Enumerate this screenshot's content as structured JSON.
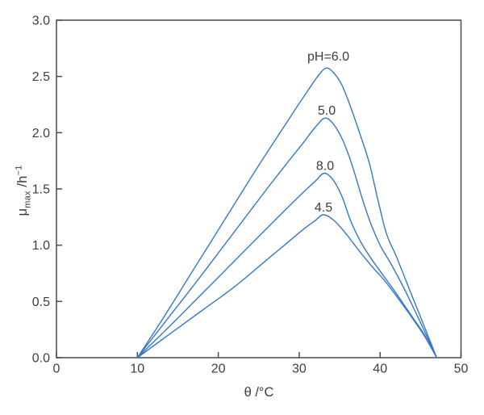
{
  "figure": {
    "background": "#ffffff",
    "curve_color": "#3578c8",
    "axis_color": "#4a4a4a",
    "text_color": "#3d3d3d",
    "tick_label_color": "#3e3e3e"
  },
  "axes": {
    "x": {
      "title": "θ /°C",
      "min": 0,
      "max": 50,
      "ticks": [
        0,
        10,
        20,
        30,
        40,
        50
      ],
      "tick_labels": [
        "0",
        "10",
        "20",
        "30",
        "40",
        "50"
      ]
    },
    "y": {
      "symbol": "μ",
      "sub": "max",
      "unit_pre": " /h",
      "sup": "−1",
      "min": 0,
      "max": 3,
      "ticks": [
        0,
        0.5,
        1,
        1.5,
        2,
        2.5,
        3
      ],
      "tick_labels": [
        "0.0",
        "0.5",
        "1.0",
        "1.5",
        "2.0",
        "2.5",
        "3.0"
      ]
    }
  },
  "chart_data": {
    "type": "line",
    "title": "",
    "xlabel": "θ /°C",
    "ylabel": "μmax /h⁻¹",
    "xlim": [
      0,
      50
    ],
    "ylim": [
      0,
      3
    ],
    "grid": false,
    "legend_position": "inline-labels",
    "description": "Maximum specific growth rate vs temperature for four pH values; all curves rise from θ=10 °C, peak near θ=33 °C and fall to zero at θ=47 °C.",
    "series": [
      {
        "ph": "6.0",
        "label": "pH=6.0",
        "label_x": 33.6,
        "label_y": 2.64,
        "peak": {
          "theta": 33.4,
          "mu": 2.57
        },
        "points": [
          [
            10,
            0
          ],
          [
            13,
            0.33
          ],
          [
            17,
            0.79
          ],
          [
            21,
            1.25
          ],
          [
            25,
            1.71
          ],
          [
            28,
            2.04
          ],
          [
            30,
            2.26
          ],
          [
            31.5,
            2.42
          ],
          [
            32.6,
            2.53
          ],
          [
            33.4,
            2.575
          ],
          [
            34.3,
            2.53
          ],
          [
            35.3,
            2.42
          ],
          [
            36.4,
            2.22
          ],
          [
            37.5,
            1.99
          ],
          [
            38.7,
            1.72
          ],
          [
            39.8,
            1.38
          ],
          [
            40.8,
            1.1
          ],
          [
            42,
            0.9
          ],
          [
            43.5,
            0.63
          ],
          [
            45,
            0.36
          ],
          [
            46,
            0.18
          ],
          [
            47,
            0
          ]
        ]
      },
      {
        "ph": "5.0",
        "label": "5.0",
        "label_x": 33.4,
        "label_y": 2.16,
        "peak": {
          "theta": 33.2,
          "mu": 2.13
        },
        "points": [
          [
            10,
            0
          ],
          [
            14,
            0.37
          ],
          [
            18,
            0.74
          ],
          [
            22,
            1.12
          ],
          [
            26,
            1.5
          ],
          [
            28.5,
            1.73
          ],
          [
            30.5,
            1.91
          ],
          [
            32,
            2.05
          ],
          [
            33.2,
            2.13
          ],
          [
            34.3,
            2.07
          ],
          [
            35.4,
            1.93
          ],
          [
            36.5,
            1.72
          ],
          [
            37.6,
            1.46
          ],
          [
            38.7,
            1.22
          ],
          [
            40,
            1.0
          ],
          [
            41.3,
            0.84
          ],
          [
            43,
            0.61
          ],
          [
            45,
            0.31
          ],
          [
            47,
            0
          ]
        ]
      },
      {
        "ph": "8.0",
        "label": "8.0",
        "label_x": 33.2,
        "label_y": 1.67,
        "peak": {
          "theta": 33.1,
          "mu": 1.64
        },
        "points": [
          [
            10,
            0
          ],
          [
            14,
            0.28
          ],
          [
            18,
            0.57
          ],
          [
            22,
            0.86
          ],
          [
            26,
            1.15
          ],
          [
            28.5,
            1.33
          ],
          [
            30.5,
            1.47
          ],
          [
            32,
            1.57
          ],
          [
            33.1,
            1.64
          ],
          [
            34.2,
            1.58
          ],
          [
            35.3,
            1.43
          ],
          [
            36.4,
            1.21
          ],
          [
            37.6,
            1.03
          ],
          [
            39,
            0.87
          ],
          [
            40.5,
            0.72
          ],
          [
            42,
            0.57
          ],
          [
            44,
            0.36
          ],
          [
            45.5,
            0.2
          ],
          [
            47,
            0
          ]
        ]
      },
      {
        "ph": "4.5",
        "label": "4.5",
        "label_x": 33.0,
        "label_y": 1.3,
        "peak": {
          "theta": 33.0,
          "mu": 1.27
        },
        "points": [
          [
            10,
            0
          ],
          [
            14,
            0.21
          ],
          [
            18,
            0.42
          ],
          [
            22,
            0.63
          ],
          [
            26,
            0.87
          ],
          [
            28.5,
            1.02
          ],
          [
            30.5,
            1.14
          ],
          [
            32,
            1.22
          ],
          [
            33,
            1.27
          ],
          [
            34.3,
            1.22
          ],
          [
            35.8,
            1.1
          ],
          [
            37.3,
            0.96
          ],
          [
            39,
            0.81
          ],
          [
            40.5,
            0.69
          ],
          [
            42,
            0.55
          ],
          [
            44,
            0.35
          ],
          [
            45.5,
            0.19
          ],
          [
            47,
            0
          ]
        ]
      }
    ]
  }
}
